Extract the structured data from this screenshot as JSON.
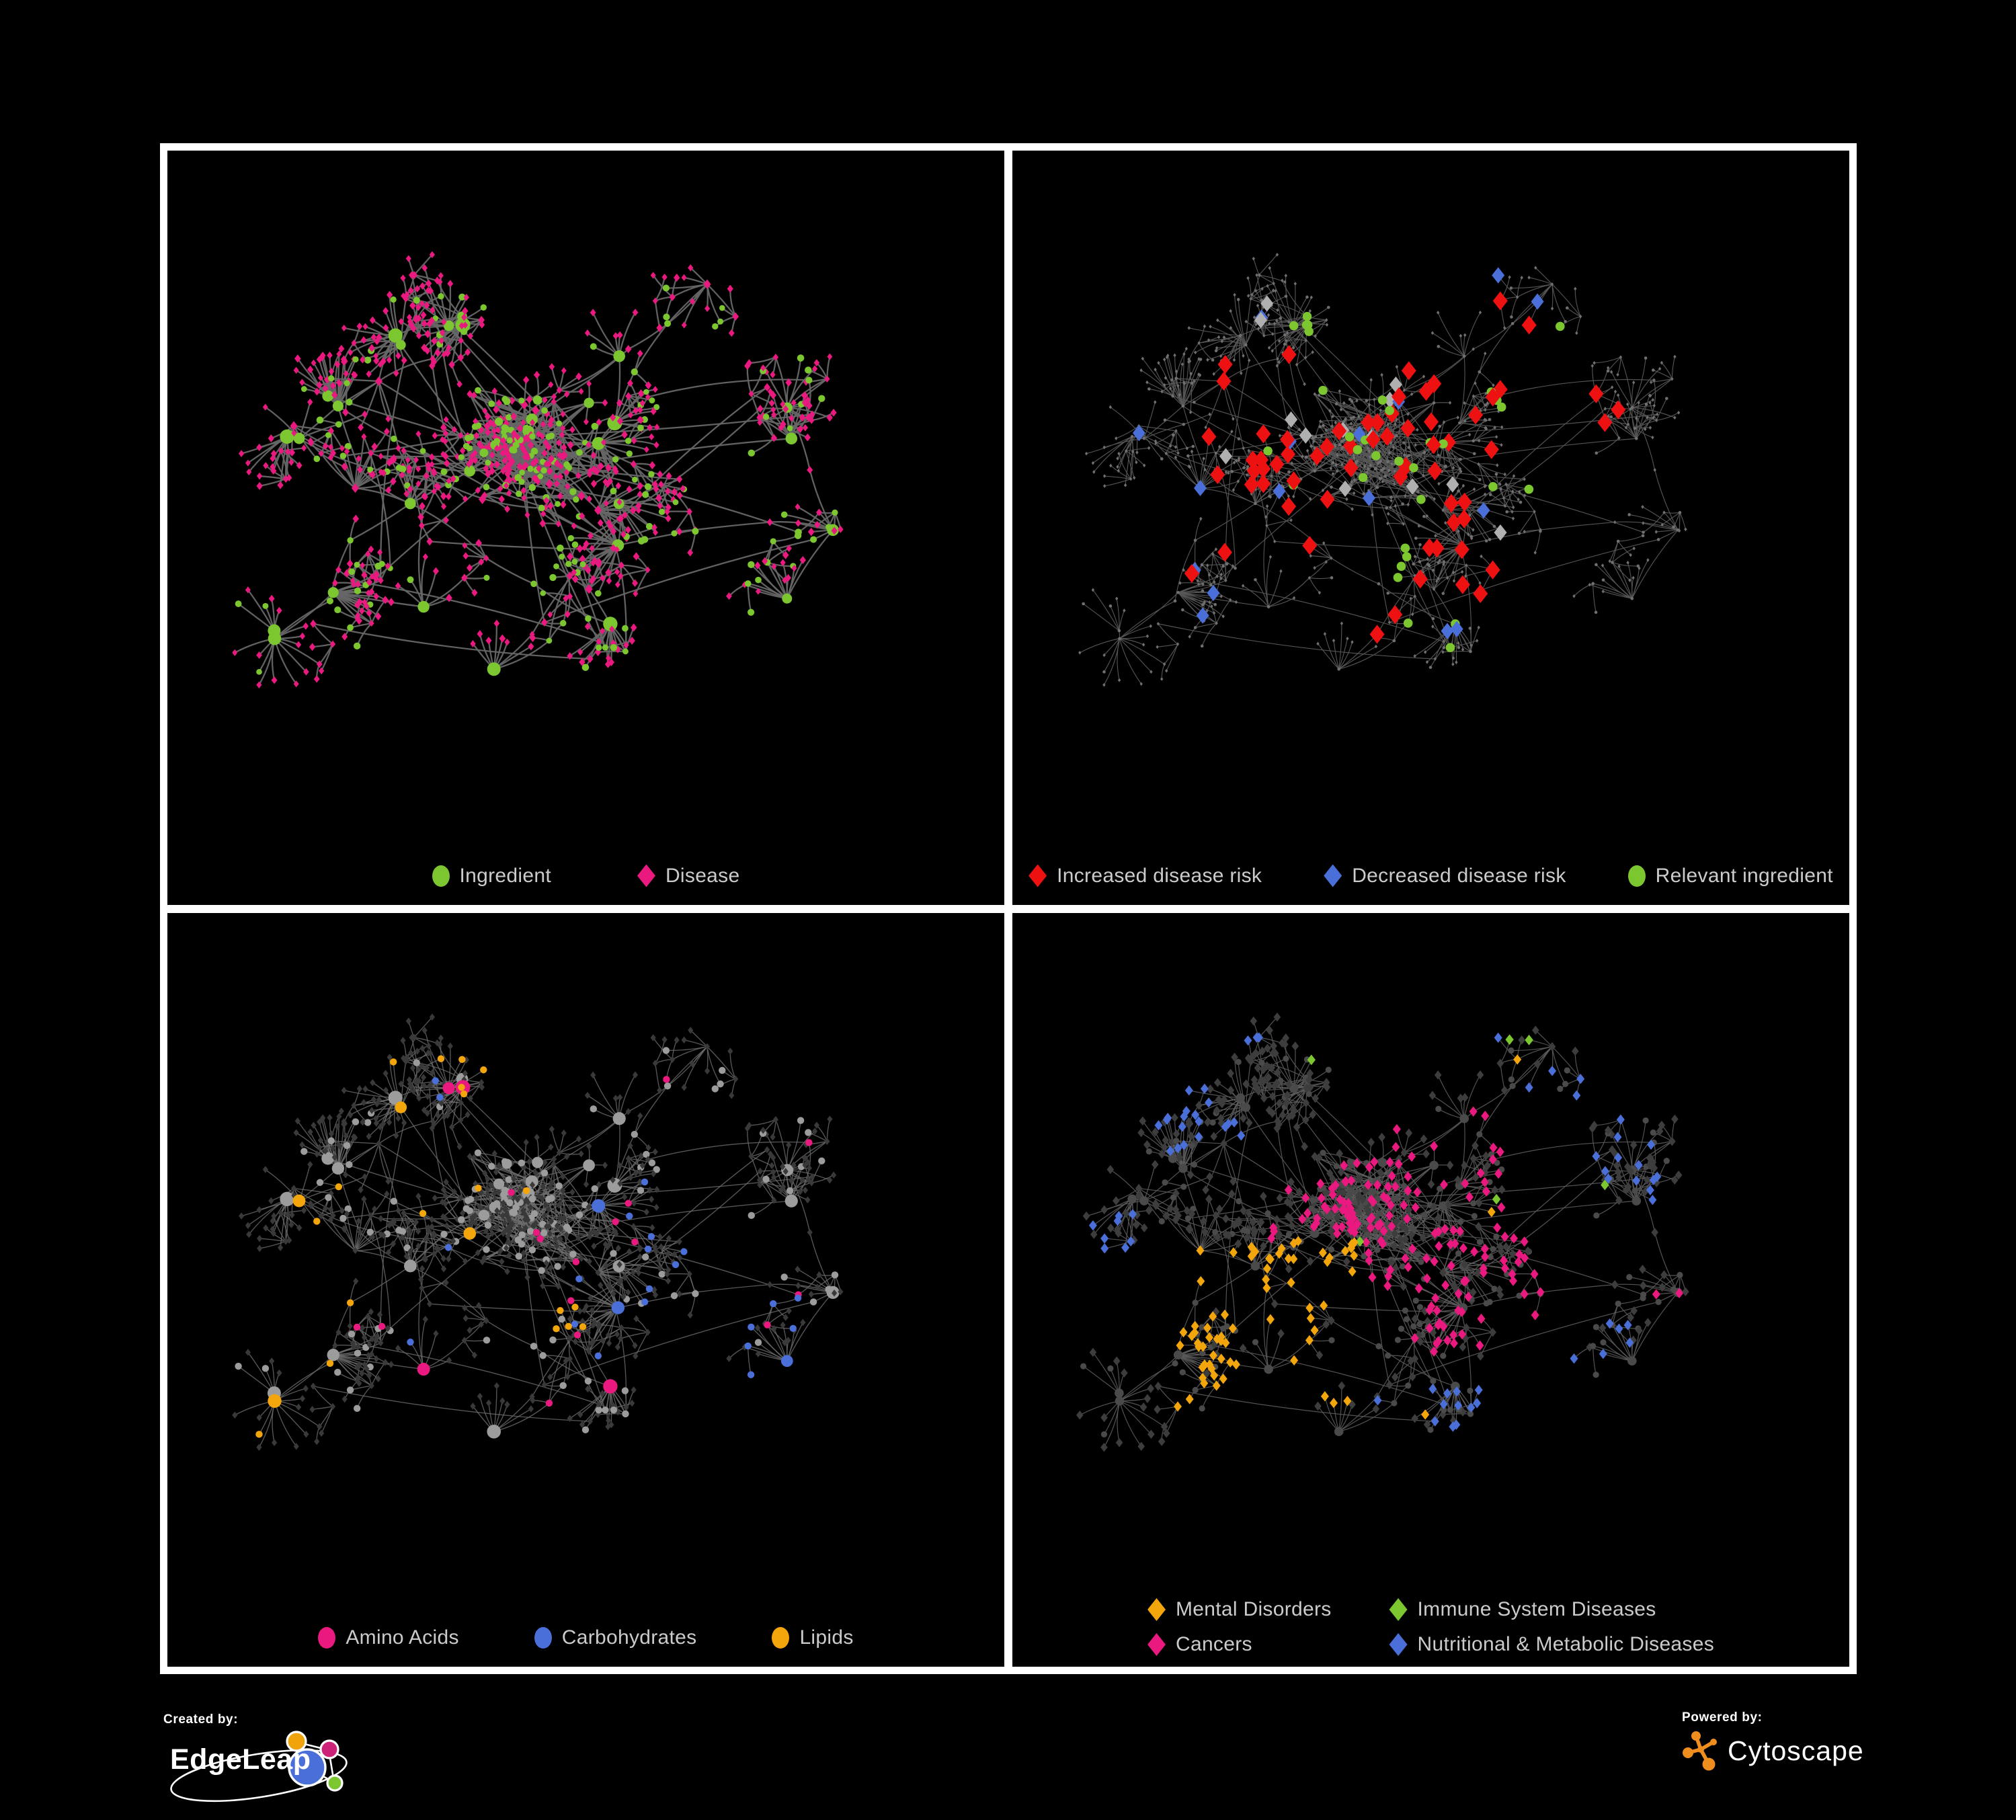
{
  "panels": [
    {
      "id": "ingredient-disease",
      "legend": [
        {
          "label": "Ingredient",
          "shape": "circle",
          "color": "#7cc62f"
        },
        {
          "label": "Disease",
          "shape": "diamond",
          "color": "#e9197f"
        }
      ]
    },
    {
      "id": "disease-risk",
      "legend": [
        {
          "label": "Increased disease risk",
          "shape": "diamond",
          "color": "#ee1111"
        },
        {
          "label": "Decreased disease risk",
          "shape": "diamond",
          "color": "#4a6fd9"
        },
        {
          "label": "Relevant ingredient",
          "shape": "circle",
          "color": "#7cc62f"
        }
      ]
    },
    {
      "id": "nutrient-classes",
      "legend": [
        {
          "label": "Amino Acids",
          "shape": "circle",
          "color": "#e9197f"
        },
        {
          "label": "Carbohydrates",
          "shape": "circle",
          "color": "#4a6fd9"
        },
        {
          "label": "Lipids",
          "shape": "circle",
          "color": "#f3a50c"
        }
      ]
    },
    {
      "id": "disease-classes",
      "legend": [
        {
          "label": "Mental Disorders",
          "shape": "diamond",
          "color": "#f3a50c"
        },
        {
          "label": "Cancers",
          "shape": "diamond",
          "color": "#e9197f"
        },
        {
          "label": "Immune System Diseases",
          "shape": "diamond",
          "color": "#7cc62f"
        },
        {
          "label": "Nutritional & Metabolic Diseases",
          "shape": "diamond",
          "color": "#4a6fd9"
        }
      ]
    }
  ],
  "network_style": {
    "ingredient-disease": {
      "edge": "#666666",
      "edge_width": 2.3,
      "edge_opacity": 0.95,
      "ingredient": "#7cc62f",
      "disease": "#e9197f"
    },
    "disease-risk": {
      "edge": "#575757",
      "edge_width": 1.15,
      "edge_opacity": 0.95,
      "background_node": "#707070",
      "increased": "#ee1111",
      "decreased": "#4a6fd9",
      "unchanged": "#b0b0b0",
      "relevant": "#7cc62f"
    },
    "nutrient-classes": {
      "edge": "#6d6d6d",
      "edge_width": 1.35,
      "edge_opacity": 0.8,
      "disease_node": "#393939",
      "ingredient_node": "#9c9c9c",
      "amino": "#e9197f",
      "carb": "#4a6fd9",
      "lipid": "#f3a50c"
    },
    "disease-classes": {
      "edge": "#5c5c5c",
      "edge_width": 1.2,
      "edge_opacity": 0.9,
      "ingredient_node": "#4a4a4a",
      "disease_node": "#3d3d3d",
      "mental": "#f3a50c",
      "immune": "#7cc62f",
      "cancer": "#e9197f",
      "nutritional": "#4a6fd9"
    }
  },
  "footer": {
    "created_by_label": "Created by:",
    "brand_left": "EdgeLeap",
    "powered_by_label": "Powered by:",
    "brand_right": "Cytoscape",
    "edgeleap_colors": {
      "orange": "#f0a30a",
      "magenta": "#cc2277",
      "blue": "#4a6fd8",
      "green": "#7cc62f"
    },
    "cytoscape_color": "#ef8d1e"
  }
}
